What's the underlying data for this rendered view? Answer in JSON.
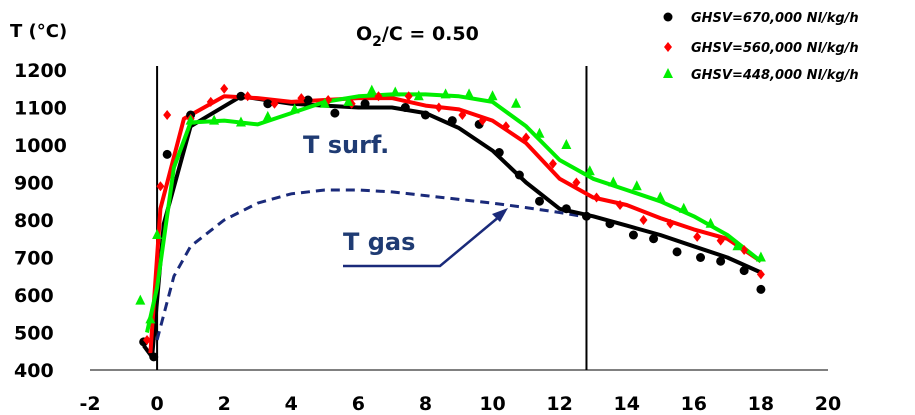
{
  "chart_data": {
    "type": "scatter",
    "title_parts": {
      "prefix": "O",
      "subscript": "2",
      "suffix": "/C = 0.50"
    },
    "ylabel": "T (°C)",
    "xlabel": "",
    "xlim": [
      -2,
      20
    ],
    "ylim": [
      400,
      1200
    ],
    "x_ticks": [
      "-2",
      "0",
      "2",
      "4",
      "6",
      "8",
      "10",
      "12",
      "14",
      "16",
      "18",
      "20"
    ],
    "y_ticks": [
      "1200",
      "1100",
      "1000",
      "900",
      "800",
      "700",
      "600",
      "500",
      "400"
    ],
    "vertical_lines": [
      0,
      12.8
    ],
    "grid": false,
    "legend_position": "top-right",
    "annotations": [
      {
        "text": "T surf."
      },
      {
        "text": "T gas"
      }
    ],
    "gas_curve": {
      "x": [
        0,
        0.5,
        1,
        2,
        3,
        4,
        5,
        6,
        7,
        8,
        9,
        10,
        11,
        12,
        12.8
      ],
      "y": [
        480,
        650,
        730,
        800,
        845,
        870,
        880,
        880,
        875,
        865,
        855,
        845,
        833,
        820,
        808
      ]
    },
    "series": [
      {
        "name": "GHSV=670,000 Nl/kg/h",
        "color": "#000000",
        "marker": "circle",
        "points_x": [
          -0.4,
          -0.1,
          0.3,
          1.0,
          2.5,
          3.3,
          4.5,
          5.3,
          6.2,
          7.4,
          8.0,
          8.8,
          9.6,
          10.2,
          10.8,
          11.4,
          12.2,
          12.8,
          13.5,
          14.2,
          14.8,
          15.5,
          16.2,
          16.8,
          17.5,
          18.0
        ],
        "points_y": [
          475,
          435,
          975,
          1080,
          1130,
          1110,
          1120,
          1085,
          1110,
          1100,
          1080,
          1065,
          1055,
          980,
          920,
          850,
          830,
          810,
          790,
          760,
          750,
          715,
          700,
          690,
          665,
          615
        ],
        "line_x": [
          -0.4,
          -0.15,
          0.2,
          1.0,
          2.5,
          4,
          5,
          6,
          7,
          8,
          9,
          10,
          11,
          12,
          13,
          14,
          15,
          16,
          17,
          18
        ],
        "line_y": [
          465,
          435,
          790,
          1050,
          1130,
          1110,
          1105,
          1100,
          1100,
          1085,
          1045,
          985,
          900,
          830,
          810,
          785,
          760,
          730,
          700,
          660
        ]
      },
      {
        "name": "GHSV=560,000 Nl/kg/h",
        "color": "#ff0000",
        "marker": "diamond",
        "points_x": [
          -0.3,
          0.1,
          0.3,
          1.0,
          1.6,
          2.0,
          2.7,
          3.5,
          4.3,
          5.1,
          5.8,
          6.6,
          7.5,
          8.4,
          9.1,
          9.7,
          10.4,
          11.0,
          11.8,
          12.5,
          13.1,
          13.8,
          14.5,
          15.3,
          16.1,
          16.8,
          17.5,
          18.0
        ],
        "points_y": [
          480,
          890,
          1080,
          1070,
          1115,
          1150,
          1130,
          1110,
          1125,
          1120,
          1110,
          1130,
          1130,
          1100,
          1080,
          1065,
          1050,
          1020,
          950,
          900,
          860,
          840,
          800,
          790,
          755,
          745,
          720,
          655
        ],
        "line_x": [
          -0.2,
          0.1,
          0.8,
          2.0,
          3.0,
          4.0,
          5.0,
          6.0,
          7.0,
          8.0,
          9.0,
          10.0,
          11.0,
          12.0,
          13.0,
          14.0,
          15.0,
          16.0,
          17.0,
          18.0
        ],
        "line_y": [
          445,
          830,
          1070,
          1130,
          1125,
          1115,
          1120,
          1125,
          1125,
          1105,
          1095,
          1065,
          1005,
          910,
          860,
          840,
          805,
          775,
          750,
          690
        ]
      },
      {
        "name": "GHSV=448,000 Nl/kg/h",
        "color": "#00ee00",
        "marker": "triangle",
        "points_x": [
          -0.5,
          -0.2,
          0.0,
          1.0,
          1.7,
          2.5,
          3.3,
          4.1,
          5.0,
          5.7,
          6.4,
          7.1,
          7.8,
          8.6,
          9.3,
          10.0,
          10.7,
          11.4,
          12.2,
          12.9,
          13.6,
          14.3,
          15.0,
          15.7,
          16.5,
          17.3,
          18.0
        ],
        "points_y": [
          585,
          535,
          760,
          1065,
          1065,
          1060,
          1075,
          1095,
          1110,
          1115,
          1145,
          1140,
          1130,
          1135,
          1135,
          1130,
          1110,
          1030,
          1000,
          930,
          900,
          890,
          860,
          830,
          790,
          730,
          700
        ],
        "line_x": [
          -0.3,
          0.0,
          0.5,
          1.0,
          2.0,
          3.0,
          4.0,
          5.0,
          6.0,
          7.0,
          8.0,
          9.0,
          10.0,
          11.0,
          12.0,
          13.0,
          14.0,
          15.0,
          16.0,
          17.0,
          18.0
        ],
        "line_y": [
          500,
          620,
          940,
          1060,
          1065,
          1055,
          1085,
          1115,
          1130,
          1135,
          1135,
          1130,
          1115,
          1050,
          960,
          910,
          880,
          850,
          810,
          760,
          690
        ]
      }
    ]
  }
}
